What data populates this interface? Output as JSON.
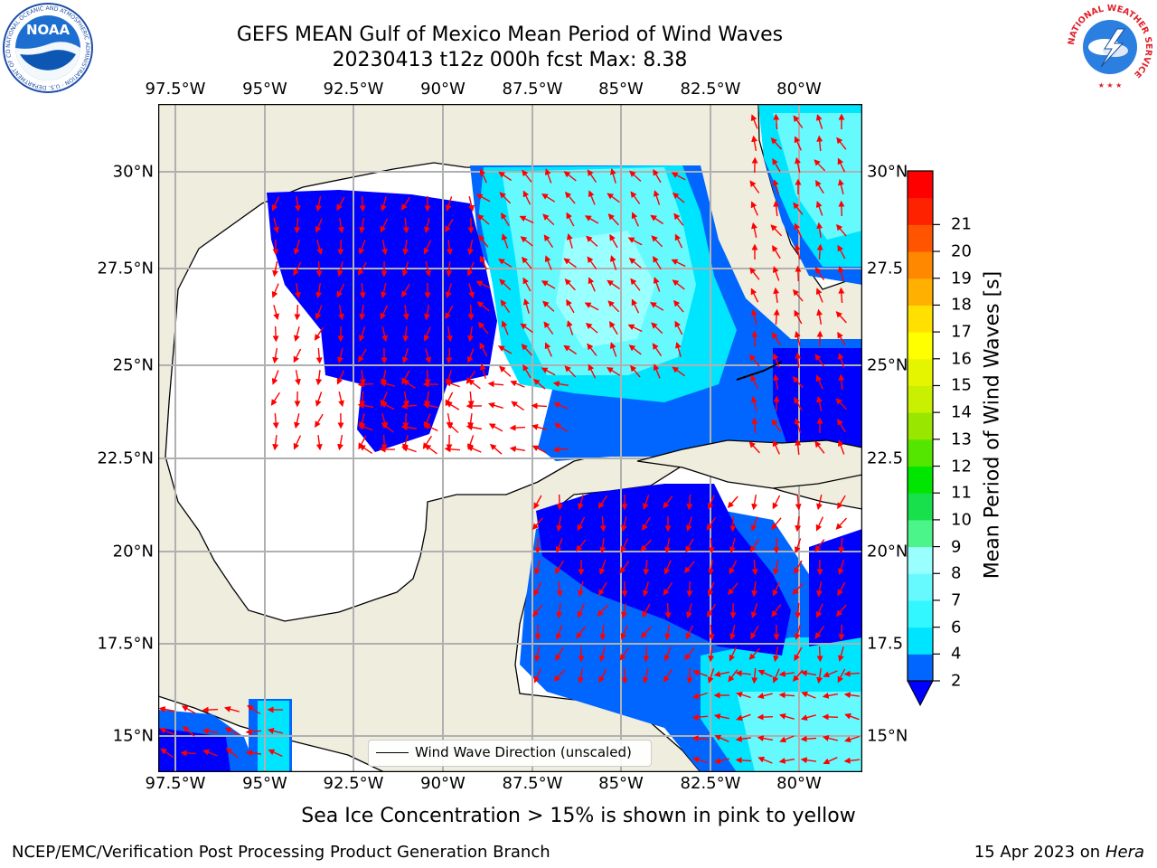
{
  "title": {
    "line1": "GEFS MEAN Gulf of Mexico Mean Period of Wind Waves",
    "line2": "20230413 t12z 000h fcst   Max: 8.38"
  },
  "map": {
    "lon_ticks": [
      "97.5°W",
      "95°W",
      "92.5°W",
      "90°W",
      "87.5°W",
      "85°W",
      "82.5°W",
      "80°W"
    ],
    "lat_ticks_left": [
      "30°N",
      "27.5°N",
      "25°N",
      "22.5°N",
      "20°N",
      "17.5°N",
      "15°N"
    ],
    "lat_ticks_right": [
      "30°N",
      "27.5",
      "25°N",
      "22.5",
      "20°N",
      "17.5",
      "15°N"
    ],
    "land_color": "#efedde",
    "ocean_color": "#ffffff",
    "arrow_color": "#ff0000"
  },
  "colorbar": {
    "label": "Mean Period of Wind Waves [s]",
    "ticks": [
      "2",
      "4",
      "6",
      "7",
      "8",
      "9",
      "10",
      "11",
      "12",
      "13",
      "14",
      "15",
      "16",
      "17",
      "18",
      "19",
      "20",
      "21"
    ],
    "colors": [
      "#0066ff",
      "#00e5ff",
      "#33f7ff",
      "#66faff",
      "#99ffff",
      "#4cf58a",
      "#18e04c",
      "#00e600",
      "#55e600",
      "#99e600",
      "#c8f000",
      "#e5f500",
      "#ffff00",
      "#ffe000",
      "#ffb000",
      "#ff8800",
      "#ff5500",
      "#ff2200",
      "#ff0000"
    ],
    "extend_color": "#0000ff"
  },
  "legend": {
    "text": "Wind Wave Direction (unscaled)"
  },
  "note": "Sea Ice Concentration > 15% is shown in pink to yellow",
  "footer": {
    "left": "NCEP/EMC/Verification Post Processing Product Generation Branch",
    "right_date": "15 Apr 2023 on ",
    "right_host": "Hera"
  },
  "logos": {
    "noaa": "NOAA",
    "noaa_ring": "NATIONAL OCEANIC AND ATMOSPHERIC ADMINISTRATION · U.S. DEPARTMENT OF COMMERCE",
    "nws_ring": "NATIONAL WEATHER SERVICE"
  }
}
